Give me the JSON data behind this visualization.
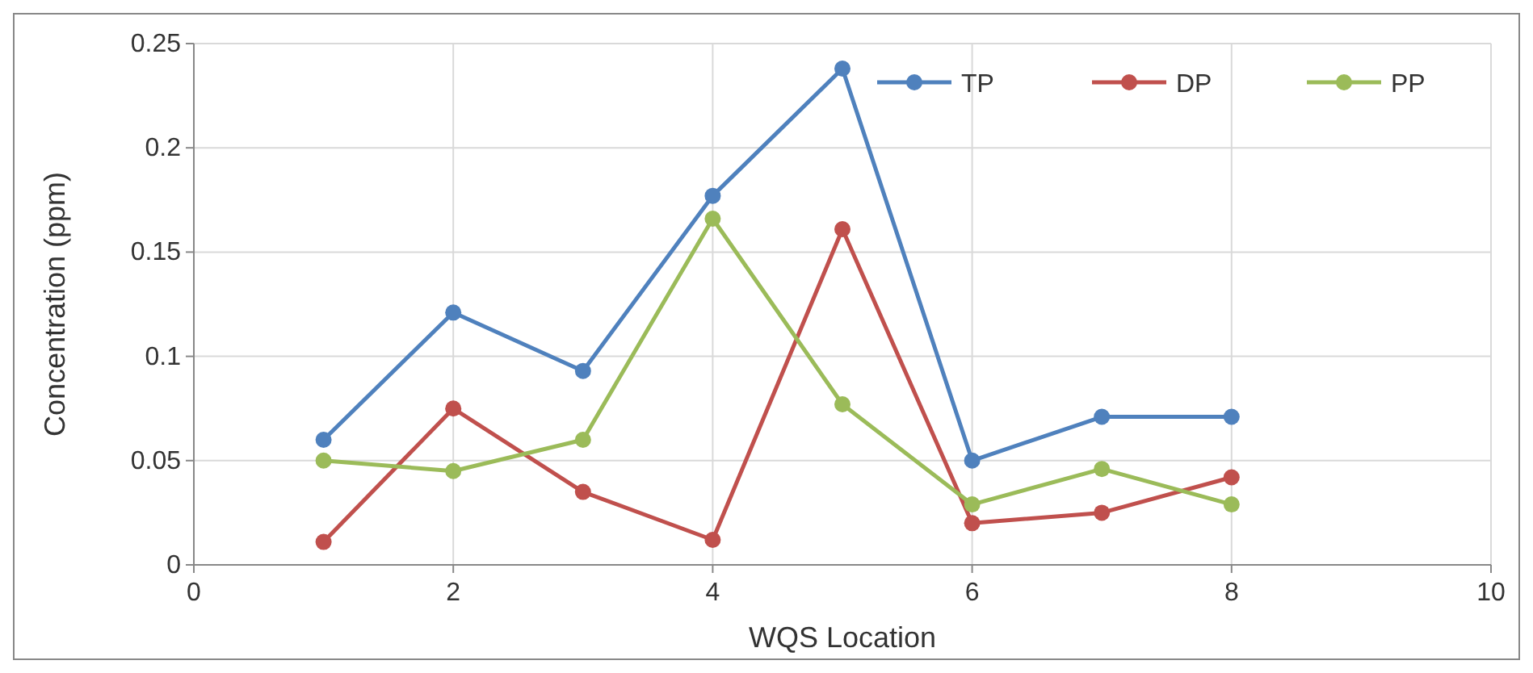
{
  "chart_data": {
    "type": "line",
    "xlabel": "WQS Location",
    "ylabel": "Concentration (ppm)",
    "x": [
      1,
      2,
      3,
      4,
      5,
      6,
      7,
      8
    ],
    "series": [
      {
        "name": "TP",
        "color": "#4f81bd",
        "values": [
          0.06,
          0.121,
          0.093,
          0.177,
          0.238,
          0.05,
          0.071,
          0.071
        ]
      },
      {
        "name": "DP",
        "color": "#c0504d",
        "values": [
          0.011,
          0.075,
          0.035,
          0.012,
          0.161,
          0.02,
          0.025,
          0.042
        ]
      },
      {
        "name": "PP",
        "color": "#9bbb59",
        "values": [
          0.05,
          0.045,
          0.06,
          0.166,
          0.077,
          0.029,
          0.046,
          0.029
        ]
      }
    ],
    "xlim": [
      0,
      10
    ],
    "xticks": [
      0,
      2,
      4,
      6,
      8,
      10
    ],
    "ylim": [
      0,
      0.25
    ],
    "yticks": [
      0,
      0.05,
      0.1,
      0.15,
      0.2,
      0.25
    ],
    "grid": true,
    "legend": "top right",
    "marker": "circle",
    "line_style": "solid"
  }
}
